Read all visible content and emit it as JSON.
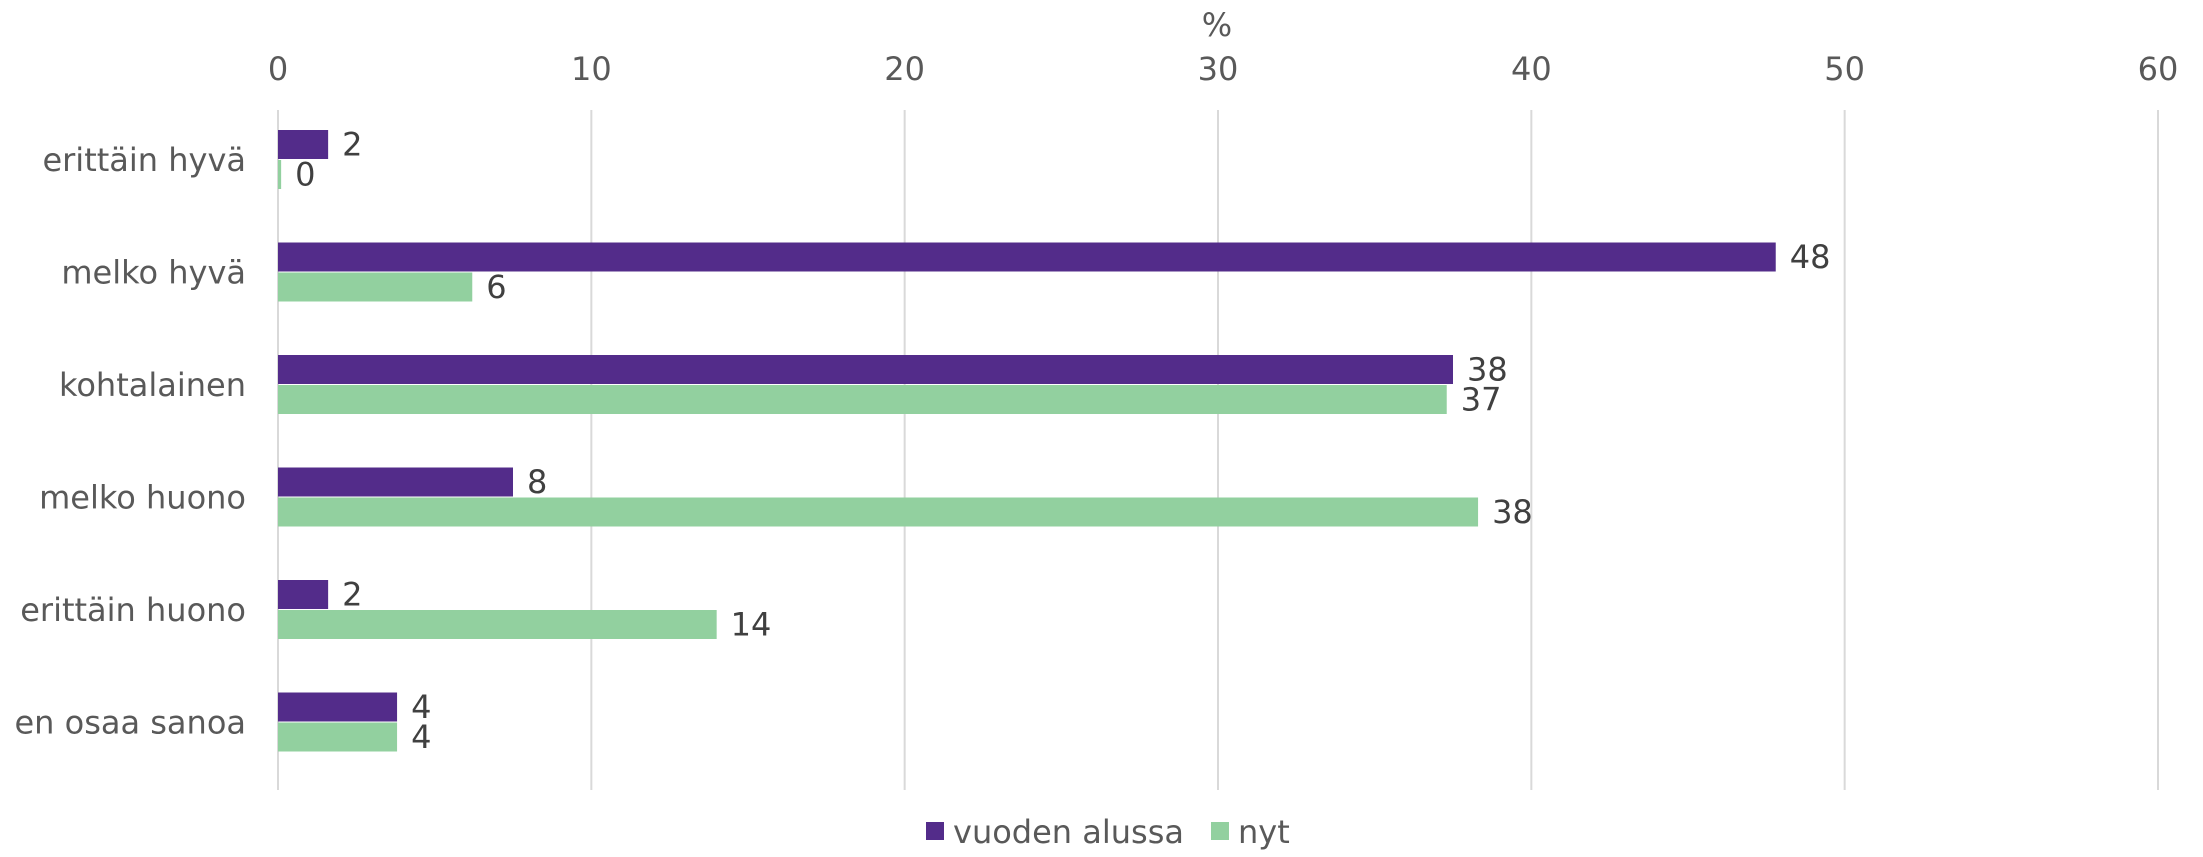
{
  "chart_data": {
    "type": "bar",
    "orientation": "horizontal",
    "x_unit_label": "%",
    "xlim": [
      0,
      60
    ],
    "x_ticks": [
      "0",
      "10",
      "20",
      "30",
      "40",
      "50",
      "60"
    ],
    "x_axis_position": "top",
    "grid": true,
    "legend_position": "bottom",
    "categories": [
      "erittäin hyvä",
      "melko hyvä",
      "kohtalainen",
      "melko huono",
      "erittäin huono",
      "en osaa sanoa"
    ],
    "series": [
      {
        "name": "vuoden alussa",
        "color": "#532c8a",
        "values": [
          1.6,
          47.8,
          37.5,
          7.5,
          1.6,
          3.8
        ],
        "labels": [
          "2",
          "48",
          "38",
          "8",
          "2",
          "4"
        ]
      },
      {
        "name": "nyt",
        "color": "#92d09f",
        "values": [
          0.1,
          6.2,
          37.3,
          38.3,
          14.0,
          3.8
        ],
        "labels": [
          "0",
          "6",
          "37",
          "38",
          "14",
          "4"
        ]
      }
    ]
  }
}
